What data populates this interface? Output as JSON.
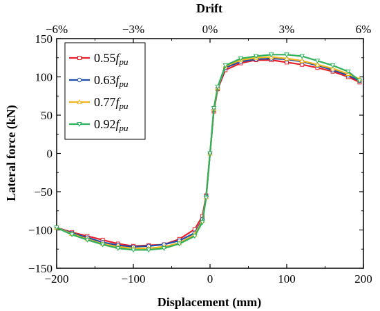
{
  "chart_data": {
    "type": "line",
    "xlabel": "Displacement (mm)",
    "ylabel": "Lateral force (kN)",
    "top_axis_label": "Drift",
    "xlim": [
      -200,
      200
    ],
    "ylim": [
      -150,
      150
    ],
    "x_ticks": [
      -200,
      -100,
      0,
      100,
      200
    ],
    "x_tick_labels": [
      "−200",
      "−100",
      "0",
      "100",
      "200"
    ],
    "y_ticks": [
      -150,
      -100,
      -50,
      0,
      50,
      100,
      150
    ],
    "y_tick_labels": [
      "−150",
      "−100",
      "−50",
      "0",
      "50",
      "100",
      "150"
    ],
    "top_ticks": [
      -6,
      -3,
      0,
      3,
      6
    ],
    "top_tick_labels": [
      "−6%",
      "−3%",
      "0%",
      "3%",
      "6%"
    ],
    "top_tick_units_per_percent": 33.333,
    "legend_position": "top-left",
    "grid": false,
    "series": [
      {
        "name": "0.55",
        "name_f": "f",
        "name_sub": "pu",
        "color": "#e8202a",
        "x": [
          -200,
          -180,
          -160,
          -140,
          -120,
          -100,
          -80,
          -60,
          -40,
          -20,
          -10,
          -5,
          0,
          5,
          10,
          20,
          40,
          60,
          80,
          100,
          120,
          140,
          160,
          180,
          195
        ],
        "y": [
          -97,
          -103,
          -108,
          -113,
          -118,
          -121,
          -120,
          -119,
          -112,
          -99,
          -82,
          -55,
          0,
          55,
          84,
          109,
          118,
          122,
          122,
          119,
          116,
          112,
          107,
          100,
          93
        ]
      },
      {
        "name": "0.63",
        "name_f": "f",
        "name_sub": "pu",
        "color": "#1f4fa8",
        "x": [
          -200,
          -180,
          -160,
          -140,
          -120,
          -100,
          -80,
          -60,
          -40,
          -20,
          -10,
          -5,
          0,
          5,
          10,
          20,
          40,
          60,
          80,
          100,
          120,
          140,
          160,
          180,
          195
        ],
        "y": [
          -97,
          -104,
          -110,
          -116,
          -120,
          -122,
          -121,
          -119,
          -114,
          -104,
          -86,
          -56,
          0,
          57,
          85,
          112,
          120,
          123,
          124,
          123,
          120,
          115,
          109,
          102,
          95
        ]
      },
      {
        "name": "0.77",
        "name_f": "f",
        "name_sub": "pu",
        "color": "#f2b51c",
        "x": [
          -200,
          -180,
          -160,
          -140,
          -120,
          -100,
          -80,
          -60,
          -40,
          -20,
          -10,
          -5,
          0,
          5,
          10,
          20,
          40,
          60,
          80,
          100,
          120,
          140,
          160,
          180,
          195
        ],
        "y": [
          -97,
          -105,
          -112,
          -118,
          -122,
          -124,
          -124,
          -122,
          -117,
          -106,
          -88,
          -57,
          0,
          58,
          86,
          114,
          122,
          125,
          126,
          124,
          121,
          116,
          111,
          104,
          97
        ]
      },
      {
        "name": "0.92",
        "name_f": "f",
        "name_sub": "pu",
        "color": "#2fb05a",
        "x": [
          -200,
          -180,
          -160,
          -140,
          -120,
          -100,
          -80,
          -60,
          -40,
          -20,
          -10,
          -5,
          0,
          5,
          10,
          20,
          40,
          60,
          80,
          100,
          120,
          140,
          160,
          180,
          195
        ],
        "y": [
          -97,
          -106,
          -113,
          -119,
          -124,
          -126,
          -126,
          -124,
          -118,
          -108,
          -90,
          -58,
          0,
          59,
          87,
          115,
          124,
          127,
          129,
          129,
          127,
          121,
          115,
          107,
          95
        ]
      }
    ]
  }
}
